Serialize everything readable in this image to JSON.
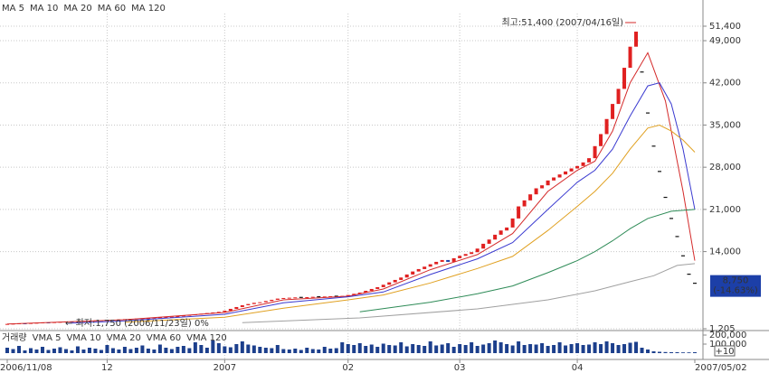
{
  "chart_data": {
    "type": "candlestick",
    "categories": [
      "2006/11/08",
      null,
      null,
      null,
      null,
      null,
      null,
      null,
      null,
      null,
      null,
      null,
      null,
      null,
      null,
      null,
      null,
      "12",
      null,
      null,
      null,
      null,
      null,
      null,
      null,
      null,
      null,
      null,
      null,
      null,
      null,
      null,
      null,
      null,
      null,
      null,
      null,
      "2007",
      null,
      null,
      null,
      null,
      null,
      null,
      null,
      null,
      null,
      null,
      null,
      null,
      null,
      null,
      null,
      null,
      null,
      null,
      null,
      null,
      "02",
      null,
      null,
      null,
      null,
      null,
      null,
      null,
      null,
      null,
      null,
      null,
      null,
      null,
      null,
      null,
      null,
      null,
      null,
      "03",
      null,
      null,
      null,
      null,
      null,
      null,
      null,
      null,
      null,
      null,
      null,
      null,
      null,
      null,
      null,
      null,
      null,
      null,
      null,
      "04",
      null,
      null,
      null,
      null,
      null,
      null,
      null,
      null,
      null,
      null,
      null,
      null,
      null,
      null,
      null,
      null,
      null,
      null,
      null,
      "2007/05/02"
    ],
    "open": [
      1950,
      2000,
      2050,
      2100,
      2080,
      2150,
      2200,
      2250,
      2230,
      2300,
      2350,
      2400,
      2380,
      2450,
      2500,
      2550,
      2600,
      2580,
      2650,
      2700,
      2750,
      2800,
      2850,
      2900,
      2950,
      3000,
      3050,
      3100,
      3150,
      3200,
      3300,
      3400,
      3500,
      3600,
      3700,
      3800,
      3900,
      4000,
      4200,
      4500,
      4800,
      5100,
      5300,
      5500,
      5600,
      5800,
      6000,
      6200,
      6300,
      6350,
      6400,
      6400,
      6450,
      6500,
      6500,
      6550,
      6600,
      6600,
      6650,
      6800,
      7000,
      7200,
      7500,
      7800,
      8100,
      8500,
      8900,
      9300,
      9700,
      10200,
      10700,
      11100,
      11500,
      11900,
      12300,
      12600,
      12300,
      12900,
      13300,
      13600,
      13900,
      14500,
      15300,
      16000,
      16800,
      17500,
      18000,
      19500,
      21500,
      22500,
      23500,
      24500,
      25000,
      25800,
      26300,
      26800,
      27300,
      27800,
      28200,
      28800,
      29500,
      31500,
      33500,
      36000,
      38500,
      41000,
      44500,
      48000,
      43800,
      37000,
      31500,
      27300,
      23000,
      19500,
      16500,
      13300,
      10250,
      8750
    ],
    "close": [
      2000,
      2050,
      2100,
      2080,
      2150,
      2200,
      2250,
      2230,
      2300,
      2350,
      2400,
      2380,
      2450,
      2500,
      2550,
      2600,
      2580,
      2650,
      2700,
      2750,
      2800,
      2850,
      2900,
      2950,
      3000,
      3050,
      3100,
      3150,
      3200,
      3300,
      3400,
      3500,
      3600,
      3700,
      3800,
      3900,
      4000,
      4200,
      4500,
      4800,
      5100,
      5300,
      5500,
      5600,
      5800,
      6000,
      6200,
      6300,
      6350,
      6400,
      6400,
      6450,
      6500,
      6500,
      6550,
      6600,
      6600,
      6650,
      6800,
      7000,
      7200,
      7500,
      7800,
      8100,
      8500,
      8900,
      9300,
      9700,
      10200,
      10700,
      11100,
      11500,
      11900,
      12300,
      12600,
      12300,
      12900,
      13300,
      13600,
      13900,
      14500,
      15300,
      16000,
      16800,
      17500,
      18000,
      19500,
      21500,
      22500,
      23500,
      24500,
      25000,
      25800,
      26300,
      26800,
      27300,
      27800,
      28200,
      28800,
      29500,
      31500,
      33500,
      36000,
      38500,
      41000,
      44500,
      48000,
      50500,
      43800,
      37000,
      31500,
      27300,
      23000,
      19500,
      16500,
      13300,
      10250,
      8750
    ],
    "up_color": "#e02020",
    "down_color": "#1c3fa8",
    "ylim": [
      900,
      53500
    ],
    "yticks": [
      {
        "value": 51400,
        "label": "51,400"
      },
      {
        "value": 49000,
        "label": "49,000"
      },
      {
        "value": 42000,
        "label": "42,000"
      },
      {
        "value": 35000,
        "label": "35,000"
      },
      {
        "value": 28000,
        "label": "28,000"
      },
      {
        "value": 21000,
        "label": "21,000"
      },
      {
        "value": 14000,
        "label": "14,000"
      },
      {
        "value": 1205,
        "label": "1,205"
      }
    ],
    "grid": true,
    "series": [
      {
        "name": "MA 5",
        "color": "#d42a2a",
        "x": [
          0,
          20,
          37,
          47,
          58,
          64,
          72,
          80,
          86,
          92,
          97,
          100,
          103,
          106,
          109,
          112,
          115,
          117
        ],
        "values": [
          2000,
          2700,
          3900,
          6000,
          6600,
          7800,
          11000,
          13500,
          17000,
          24000,
          27500,
          29000,
          34000,
          42000,
          47000,
          39000,
          24000,
          12500
        ]
      },
      {
        "name": "MA 10",
        "color": "#3a3ad0",
        "x": [
          10,
          20,
          37,
          47,
          58,
          64,
          72,
          80,
          86,
          92,
          97,
          100,
          103,
          106,
          109,
          111,
          113,
          115,
          117
        ],
        "values": [
          2100,
          2500,
          3600,
          5500,
          6500,
          7300,
          10200,
          12800,
          15500,
          21000,
          25500,
          27500,
          31000,
          36500,
          41500,
          42000,
          38500,
          31000,
          21000
        ]
      },
      {
        "name": "MA 20",
        "color": "#e0a020",
        "x": [
          20,
          37,
          47,
          58,
          64,
          72,
          80,
          86,
          92,
          97,
          100,
          103,
          106,
          109,
          111,
          113,
          115,
          117
        ],
        "values": [
          2300,
          3100,
          4600,
          6000,
          6800,
          8800,
          11200,
          13200,
          17500,
          21500,
          24000,
          27000,
          31000,
          34500,
          35000,
          34000,
          32500,
          30500
        ]
      },
      {
        "name": "MA 60",
        "color": "#2e8b57",
        "x": [
          60,
          72,
          80,
          86,
          92,
          97,
          100,
          103,
          106,
          109,
          113,
          117
        ],
        "values": [
          4000,
          5600,
          7000,
          8300,
          10500,
          12500,
          14000,
          15800,
          17800,
          19500,
          20700,
          21000
        ]
      },
      {
        "name": "MA 120",
        "color": "#a0a0a0",
        "x": [
          40,
          60,
          80,
          92,
          100,
          106,
          110,
          114,
          117
        ],
        "values": [
          2200,
          3000,
          4500,
          6000,
          7500,
          9000,
          10000,
          11700,
          12000
        ]
      }
    ],
    "high_note": "최고:51,400 (2007/04/16일)",
    "low_note": "← 최저:1,750 (2006/11/23일) 0%",
    "last_value": 8750,
    "last_value_label": "8,750",
    "change_label": "(-14.63%)",
    "volume": {
      "type": "bar",
      "title": "거래량",
      "color": "#1c3f8c",
      "values": [
        60000,
        45000,
        80000,
        30000,
        55000,
        40000,
        70000,
        35000,
        50000,
        65000,
        45000,
        30000,
        75000,
        40000,
        60000,
        50000,
        35000,
        90000,
        55000,
        40000,
        70000,
        45000,
        60000,
        85000,
        50000,
        40000,
        95000,
        60000,
        45000,
        70000,
        80000,
        55000,
        120000,
        90000,
        60000,
        140000,
        110000,
        75000,
        65000,
        100000,
        130000,
        95000,
        85000,
        70000,
        60000,
        55000,
        90000,
        45000,
        40000,
        50000,
        35000,
        60000,
        45000,
        40000,
        70000,
        50000,
        55000,
        120000,
        100000,
        90000,
        110000,
        80000,
        95000,
        70000,
        105000,
        90000,
        85000,
        120000,
        75000,
        100000,
        90000,
        80000,
        130000,
        85000,
        95000,
        110000,
        70000,
        100000,
        90000,
        120000,
        80000,
        95000,
        110000,
        140000,
        120000,
        100000,
        85000,
        130000,
        90000,
        100000,
        95000,
        110000,
        80000,
        90000,
        120000,
        85000,
        100000,
        110000,
        90000,
        95000,
        120000,
        100000,
        130000,
        110000,
        90000,
        100000,
        115000,
        125000,
        60000,
        40000,
        20000,
        15000,
        12000,
        10000,
        10000,
        8000,
        8000,
        10000
      ],
      "ylim": [
        0,
        250000
      ],
      "yticks": [
        {
          "value": 200000,
          "label": "200,000"
        },
        {
          "value": 100000,
          "label": "100,000"
        }
      ],
      "legend": [
        {
          "name": "VMA 5",
          "color": "#d42a2a"
        },
        {
          "name": "VMA 10",
          "color": "#3a3ad0"
        },
        {
          "name": "VMA 20",
          "color": "#e0a020"
        },
        {
          "name": "VMA 60",
          "color": "#2e8b57"
        },
        {
          "name": "VMA 120",
          "color": "#a0a0a0"
        }
      ],
      "button": "+10"
    }
  }
}
